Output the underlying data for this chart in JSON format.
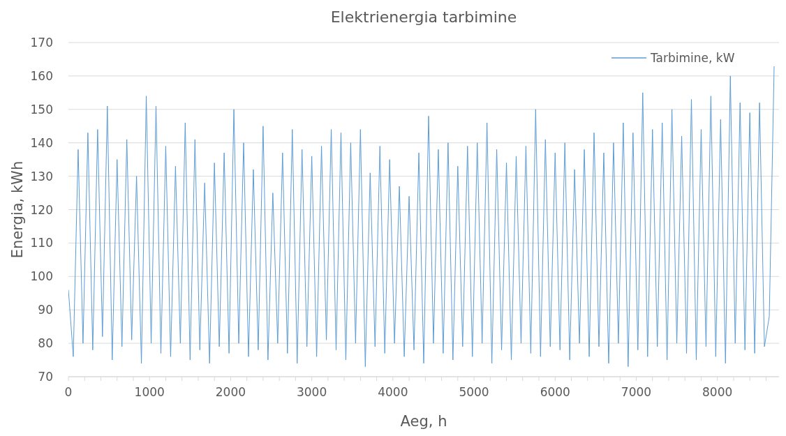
{
  "chart_data": {
    "type": "line",
    "title": "Elektrienergia tarbimine",
    "xlabel": "Aeg, h",
    "ylabel": "Energia, kWh",
    "x": [
      0,
      60,
      120,
      180,
      240,
      300,
      360,
      420,
      480,
      540,
      600,
      660,
      720,
      780,
      840,
      900,
      960,
      1020,
      1080,
      1140,
      1200,
      1260,
      1320,
      1380,
      1440,
      1500,
      1560,
      1620,
      1680,
      1740,
      1800,
      1860,
      1920,
      1980,
      2040,
      2100,
      2160,
      2220,
      2280,
      2340,
      2400,
      2460,
      2520,
      2580,
      2640,
      2700,
      2760,
      2820,
      2880,
      2940,
      3000,
      3060,
      3120,
      3180,
      3240,
      3300,
      3360,
      3420,
      3480,
      3540,
      3600,
      3660,
      3720,
      3780,
      3840,
      3900,
      3960,
      4020,
      4080,
      4140,
      4200,
      4260,
      4320,
      4380,
      4440,
      4500,
      4560,
      4620,
      4680,
      4740,
      4800,
      4860,
      4920,
      4980,
      5040,
      5100,
      5160,
      5220,
      5280,
      5340,
      5400,
      5460,
      5520,
      5580,
      5640,
      5700,
      5760,
      5820,
      5880,
      5940,
      6000,
      6060,
      6120,
      6180,
      6240,
      6300,
      6360,
      6420,
      6480,
      6540,
      6600,
      6660,
      6720,
      6780,
      6840,
      6900,
      6960,
      7020,
      7080,
      7140,
      7200,
      7260,
      7320,
      7380,
      7440,
      7500,
      7560,
      7620,
      7680,
      7740,
      7800,
      7860,
      7920,
      7980,
      8040,
      8100,
      8160,
      8220,
      8280,
      8340,
      8400,
      8460,
      8520,
      8580,
      8640,
      8700
    ],
    "series": [
      {
        "name": "Tarbimine, kW",
        "color": "#5b9bd5",
        "values": [
          96,
          76,
          138,
          80,
          143,
          78,
          144,
          82,
          151,
          75,
          135,
          79,
          141,
          81,
          130,
          74,
          154,
          80,
          151,
          77,
          139,
          76,
          133,
          80,
          146,
          75,
          141,
          78,
          128,
          74,
          134,
          79,
          137,
          77,
          150,
          80,
          140,
          76,
          132,
          78,
          145,
          75,
          125,
          80,
          137,
          77,
          144,
          74,
          138,
          79,
          136,
          76,
          139,
          81,
          144,
          78,
          143,
          75,
          140,
          80,
          144,
          73,
          131,
          79,
          139,
          77,
          135,
          80,
          127,
          76,
          124,
          78,
          137,
          74,
          148,
          80,
          138,
          77,
          140,
          75,
          133,
          79,
          139,
          76,
          140,
          80,
          146,
          74,
          138,
          78,
          134,
          75,
          136,
          80,
          139,
          77,
          150,
          76,
          141,
          79,
          137,
          78,
          140,
          75,
          132,
          80,
          138,
          76,
          143,
          79,
          137,
          74,
          140,
          80,
          146,
          73,
          143,
          78,
          155,
          76,
          144,
          79,
          146,
          75,
          150,
          80,
          142,
          77,
          153,
          75,
          144,
          79,
          154,
          76,
          147,
          74,
          160,
          80,
          152,
          78,
          149,
          77,
          152,
          79,
          88,
          163
        ]
      }
    ],
    "xlim": [
      0,
      8760
    ],
    "xticks": [
      0,
      {
        "value": 200,
        "label": null
      },
      {
        "value": 400,
        "label": null
      },
      {
        "value": 600,
        "label": null
      },
      {
        "value": 800,
        "label": null
      },
      1000,
      {
        "value": 1200,
        "label": null
      },
      {
        "value": 1400,
        "label": null
      },
      {
        "value": 1600,
        "label": null
      },
      {
        "value": 1800,
        "label": null
      },
      2000,
      {
        "value": 2200,
        "label": null
      },
      {
        "value": 2400,
        "label": null
      },
      {
        "value": 2600,
        "label": null
      },
      {
        "value": 2800,
        "label": null
      },
      3000,
      {
        "value": 3200,
        "label": null
      },
      {
        "value": 3400,
        "label": null
      },
      {
        "value": 3600,
        "label": null
      },
      {
        "value": 3800,
        "label": null
      },
      4000,
      {
        "value": 4200,
        "label": null
      },
      {
        "value": 4400,
        "label": null
      },
      {
        "value": 4600,
        "label": null
      },
      {
        "value": 4800,
        "label": null
      },
      5000,
      {
        "value": 5200,
        "label": null
      },
      {
        "value": 5400,
        "label": null
      },
      {
        "value": 5600,
        "label": null
      },
      {
        "value": 5800,
        "label": null
      },
      6000,
      {
        "value": 6200,
        "label": null
      },
      {
        "value": 6400,
        "label": null
      },
      {
        "value": 6600,
        "label": null
      },
      {
        "value": 6800,
        "label": null
      },
      7000,
      {
        "value": 7200,
        "label": null
      },
      {
        "value": 7400,
        "label": null
      },
      {
        "value": 7600,
        "label": null
      },
      {
        "value": 7800,
        "label": null
      },
      8000,
      {
        "value": 8200,
        "label": null
      },
      {
        "value": 8400,
        "label": null
      },
      {
        "value": 8600,
        "label": null
      }
    ],
    "ylim": [
      70,
      170
    ],
    "yticks": [
      70,
      80,
      90,
      100,
      110,
      120,
      130,
      140,
      150,
      160,
      170
    ],
    "grid": "y",
    "legend": "top right",
    "marker": "none",
    "line_style": "solid"
  }
}
